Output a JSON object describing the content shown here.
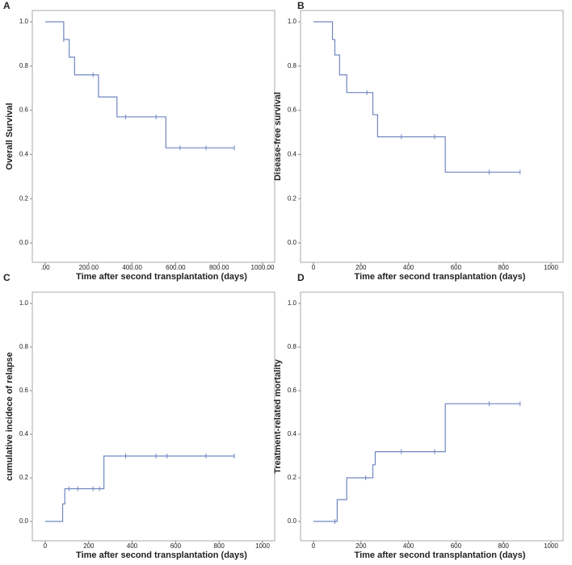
{
  "chart_data": [
    {
      "type": "line",
      "step": "post",
      "panel_label": "A",
      "xlabel": "Time after second transplantation (days)",
      "ylabel": "Overall Survival",
      "xlim": [
        0,
        1000
      ],
      "ylim": [
        0,
        1
      ],
      "xticks": [
        {
          "value": 0,
          "label": ".00"
        },
        {
          "value": 200,
          "label": "200.00"
        },
        {
          "value": 400,
          "label": "400.00"
        },
        {
          "value": 600,
          "label": "600.00"
        },
        {
          "value": 800,
          "label": "800.00"
        },
        {
          "value": 1000,
          "label": "1000.00"
        }
      ],
      "yticks": [
        {
          "value": 0,
          "label": "0.0"
        },
        {
          "value": 0.2,
          "label": "0.2"
        },
        {
          "value": 0.4,
          "label": "0.4"
        },
        {
          "value": 0.6,
          "label": "0.6"
        },
        {
          "value": 0.8,
          "label": "0.8"
        },
        {
          "value": 1,
          "label": "1.0"
        }
      ],
      "series": [
        {
          "color": "#6f86c0",
          "x": [
            0,
            85,
            110,
            135,
            245,
            330,
            555,
            870
          ],
          "values": [
            1,
            0.92,
            0.84,
            0.76,
            0.66,
            0.57,
            0.43,
            0.43
          ]
        }
      ],
      "censored": {
        "x": [
          85,
          220,
          370,
          510,
          620,
          740,
          870
        ],
        "values": [
          0.92,
          0.76,
          0.57,
          0.57,
          0.43,
          0.43,
          0.43
        ]
      }
    },
    {
      "type": "line",
      "step": "post",
      "panel_label": "B",
      "xlabel": "Time after second transplantation (days)",
      "ylabel": "Disease-free survival",
      "xlim": [
        0,
        1000
      ],
      "ylim": [
        0,
        1
      ],
      "xticks": [
        0,
        200,
        400,
        600,
        800,
        1000
      ],
      "yticks": [
        {
          "value": 0,
          "label": "0.0"
        },
        {
          "value": 0.2,
          "label": "0.2"
        },
        {
          "value": 0.4,
          "label": "0.4"
        },
        {
          "value": 0.6,
          "label": "0.6"
        },
        {
          "value": 0.8,
          "label": "0.8"
        },
        {
          "value": 1,
          "label": "1.0"
        }
      ],
      "series": [
        {
          "color": "#6f86c0",
          "x": [
            0,
            80,
            90,
            110,
            140,
            250,
            270,
            555,
            870
          ],
          "values": [
            1,
            0.92,
            0.85,
            0.76,
            0.68,
            0.58,
            0.48,
            0.32,
            0.32
          ]
        }
      ],
      "censored": {
        "x": [
          225,
          370,
          510,
          740,
          870
        ],
        "values": [
          0.68,
          0.48,
          0.48,
          0.32,
          0.32
        ]
      }
    },
    {
      "type": "line",
      "step": "post",
      "panel_label": "C",
      "xlabel": "Time after second transplantation (days)",
      "ylabel": "cumulative incidece of relapse",
      "xlim": [
        0,
        1000
      ],
      "ylim": [
        0,
        1
      ],
      "xticks": [
        0,
        200,
        400,
        600,
        800,
        1000
      ],
      "yticks": [
        {
          "value": 0,
          "label": "0.0"
        },
        {
          "value": 0.2,
          "label": "0.2"
        },
        {
          "value": 0.4,
          "label": "0.4"
        },
        {
          "value": 0.6,
          "label": "0.6"
        },
        {
          "value": 0.8,
          "label": "0.8"
        },
        {
          "value": 1,
          "label": "1.0"
        }
      ],
      "series": [
        {
          "color": "#6f86c0",
          "x": [
            0,
            80,
            90,
            270,
            870
          ],
          "values": [
            0,
            0.08,
            0.15,
            0.3,
            0.3
          ]
        }
      ],
      "censored": {
        "x": [
          110,
          150,
          220,
          250,
          370,
          510,
          560,
          740,
          870
        ],
        "values": [
          0.15,
          0.15,
          0.15,
          0.15,
          0.3,
          0.3,
          0.3,
          0.3,
          0.3
        ]
      }
    },
    {
      "type": "line",
      "step": "post",
      "panel_label": "D",
      "xlabel": "Time after second transplantation (days)",
      "ylabel": "Treatment-related mortality",
      "xlim": [
        0,
        1000
      ],
      "ylim": [
        0,
        1
      ],
      "xticks": [
        0,
        200,
        400,
        600,
        800,
        1000
      ],
      "yticks": [
        {
          "value": 0,
          "label": "0.0"
        },
        {
          "value": 0.2,
          "label": "0.2"
        },
        {
          "value": 0.4,
          "label": "0.4"
        },
        {
          "value": 0.6,
          "label": "0.6"
        },
        {
          "value": 0.8,
          "label": "0.8"
        },
        {
          "value": 1,
          "label": "1.0"
        }
      ],
      "series": [
        {
          "color": "#6f86c0",
          "x": [
            0,
            100,
            140,
            250,
            260,
            555,
            870
          ],
          "values": [
            0,
            0.1,
            0.2,
            0.26,
            0.32,
            0.54,
            0.54
          ]
        }
      ],
      "censored": {
        "x": [
          90,
          220,
          370,
          510,
          740,
          870
        ],
        "values": [
          0,
          0.2,
          0.32,
          0.32,
          0.54,
          0.54
        ]
      }
    }
  ]
}
